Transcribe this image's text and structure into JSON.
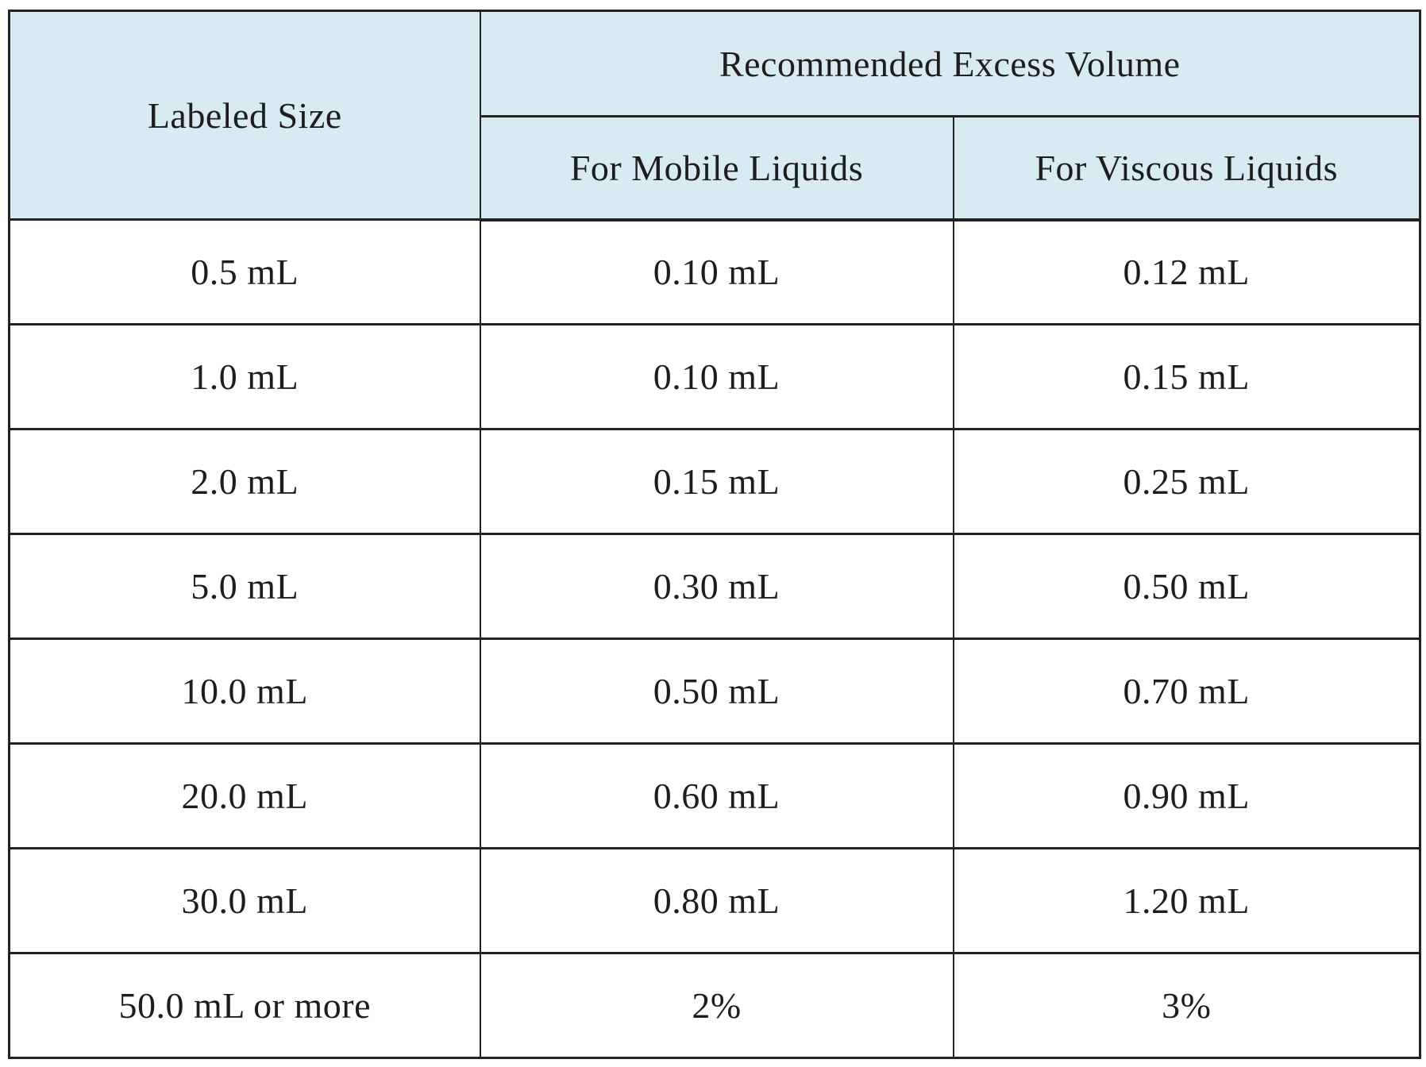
{
  "table": {
    "headers": {
      "labeled_size": "Labeled Size",
      "excess_group": "Recommended Excess Volume",
      "mobile": "For Mobile Liquids",
      "viscous": "For Viscous Liquids"
    },
    "rows": [
      {
        "labeled_size": "0.5 mL",
        "mobile": "0.10 mL",
        "viscous": "0.12 mL"
      },
      {
        "labeled_size": "1.0 mL",
        "mobile": "0.10 mL",
        "viscous": "0.15 mL"
      },
      {
        "labeled_size": "2.0 mL",
        "mobile": "0.15 mL",
        "viscous": "0.25 mL"
      },
      {
        "labeled_size": "5.0 mL",
        "mobile": "0.30 mL",
        "viscous": "0.50 mL"
      },
      {
        "labeled_size": "10.0 mL",
        "mobile": "0.50 mL",
        "viscous": "0.70 mL"
      },
      {
        "labeled_size": "20.0 mL",
        "mobile": "0.60 mL",
        "viscous": "0.90 mL"
      },
      {
        "labeled_size": "30.0 mL",
        "mobile": "0.80 mL",
        "viscous": "1.20 mL"
      },
      {
        "labeled_size": "50.0 mL or more",
        "mobile": "2%",
        "viscous": "3%"
      }
    ],
    "colors": {
      "header_bg": "#d9ebf2",
      "border": "#222222",
      "text": "#1d1d1d"
    }
  }
}
